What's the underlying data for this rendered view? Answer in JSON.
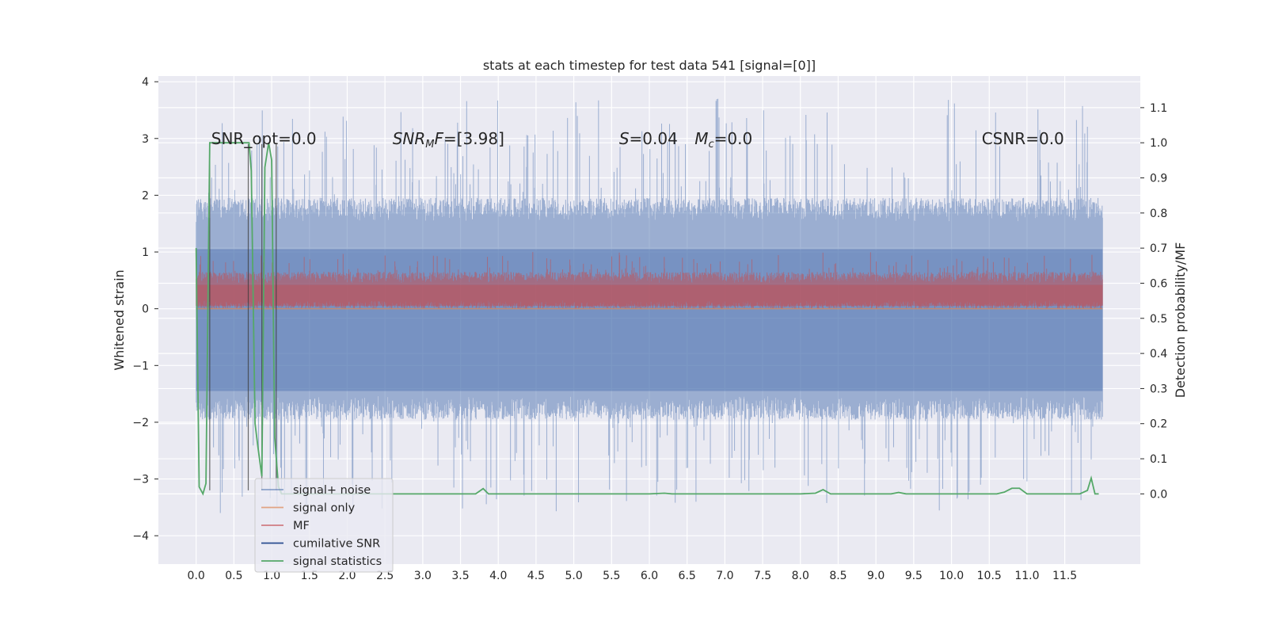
{
  "chart_data": {
    "type": "line",
    "title": "stats at each timestep for test data 541 [signal=[0]]",
    "xlabel": "",
    "ylabel_left": "Whitened strain",
    "ylabel_right": "Detection probability/MF",
    "xlim": [
      -0.5,
      12.5
    ],
    "ylim_left": [
      -4.5,
      4.1
    ],
    "ylim_right": [
      -0.2,
      1.19
    ],
    "x_ticks": [
      "0.0",
      "0.5",
      "1.0",
      "1.5",
      "2.0",
      "2.5",
      "3.0",
      "3.5",
      "4.0",
      "4.5",
      "5.0",
      "5.5",
      "6.0",
      "6.5",
      "7.0",
      "7.5",
      "8.0",
      "8.5",
      "9.0",
      "9.5",
      "10.0",
      "10.5",
      "11.0",
      "11.5"
    ],
    "y_ticks_left": [
      "−4",
      "−3",
      "−2",
      "−1",
      "0",
      "1",
      "2",
      "3",
      "4"
    ],
    "y_ticks_right": [
      "0.0",
      "0.1",
      "0.2",
      "0.3",
      "0.4",
      "0.5",
      "0.6",
      "0.7",
      "0.8",
      "0.9",
      "1.0",
      "1.1"
    ],
    "grid": true,
    "legend_position": "lower-left",
    "annotations": [
      {
        "text": "SNR_opt=0.0",
        "x": 0.2,
        "y": 3.0
      },
      {
        "text": "SNR_MF=[3.98]",
        "x": 2.6,
        "y": 3.0
      },
      {
        "text": "S=0.04",
        "x": 5.6,
        "y": 3.0
      },
      {
        "text": "M_c=0.0",
        "x": 6.6,
        "y": 3.0
      },
      {
        "text": "CSNR=0.0",
        "x": 10.4,
        "y": 3.0
      }
    ],
    "series": [
      {
        "name": "signal+ noise",
        "color": "#4c72b0",
        "axis": "left",
        "x_range": [
          0.0,
          12.0
        ],
        "envelope_typical": [
          -1.7,
          1.7
        ],
        "envelope_max": [
          -3.6,
          3.7
        ]
      },
      {
        "name": "signal only",
        "color": "#dd8452",
        "axis": "left",
        "value": 0.0
      },
      {
        "name": "MF",
        "color": "#c44e52",
        "axis": "left",
        "x_range": [
          0.0,
          12.0
        ],
        "envelope_typical": [
          0.0,
          0.65
        ],
        "envelope_max": [
          0.0,
          1.0
        ]
      },
      {
        "name": "cumilative SNR",
        "color": "#4c72b0",
        "axis": "left",
        "value": 0.0
      },
      {
        "name": "signal statistics",
        "color": "#55a868",
        "axis": "right",
        "x": [
          0.0,
          0.04,
          0.09,
          0.13,
          0.18,
          0.22,
          0.26,
          0.3,
          0.35,
          0.4,
          0.45,
          0.5,
          0.55,
          0.6,
          0.65,
          0.7,
          0.73,
          0.78,
          0.82,
          0.87,
          0.91,
          0.96,
          1.0,
          1.04,
          1.09,
          1.13,
          1.18,
          1.22,
          1.3,
          1.5,
          2.0,
          2.5,
          3.0,
          3.5,
          3.7,
          3.8,
          3.87,
          4.0,
          5.0,
          6.0,
          6.2,
          6.3,
          6.5,
          7.0,
          8.0,
          8.2,
          8.3,
          8.4,
          8.5,
          9.0,
          9.2,
          9.3,
          9.4,
          9.5,
          10.0,
          10.5,
          10.6,
          10.7,
          10.8,
          10.9,
          11.0,
          11.5,
          11.7,
          11.8,
          11.85,
          11.9,
          11.95
        ],
        "values": [
          0.7,
          0.02,
          0.0,
          0.03,
          1.0,
          1.0,
          1.0,
          1.0,
          1.0,
          1.0,
          1.0,
          1.0,
          1.0,
          1.0,
          1.0,
          1.0,
          0.92,
          0.2,
          0.13,
          0.05,
          0.93,
          1.0,
          0.95,
          0.16,
          0.02,
          0.0,
          0.0,
          0.0,
          0.0,
          0.0,
          0.0,
          0.0,
          0.0,
          0.0,
          0.0,
          0.015,
          0.0,
          0.0,
          0.0,
          0.0,
          0.002,
          0.0,
          0.0,
          0.0,
          0.0,
          0.002,
          0.012,
          0.0,
          0.0,
          0.0,
          0.0,
          0.004,
          0.0,
          0.0,
          0.0,
          0.0,
          0.0,
          0.005,
          0.016,
          0.016,
          0.0,
          0.0,
          0.0,
          0.01,
          0.045,
          0.0,
          0.0
        ]
      }
    ]
  }
}
